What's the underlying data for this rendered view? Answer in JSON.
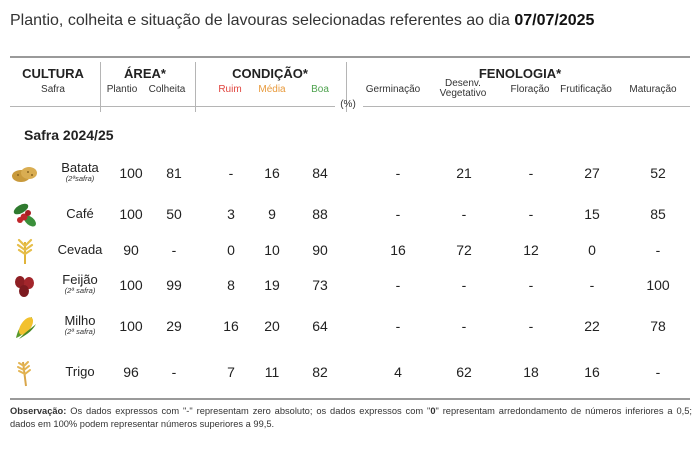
{
  "title": {
    "prefix": "Plantio, colheita e situação de lavouras selecionadas referentes ao dia",
    "date": "07/07/2025"
  },
  "header": {
    "cultura": "CULTURA",
    "safra": "Safra",
    "area": "ÁREA*",
    "plantio": "Plantio",
    "colheita": "Colheita",
    "condicao": "CONDIÇÃO*",
    "ruim": "Ruim",
    "media": "Média",
    "boa": "Boa",
    "fenologia": "FENOLOGIA*",
    "germinacao": "Germinação",
    "desenv_1": "Desenv.",
    "desenv_2": "Vegetativo",
    "floracao": "Floração",
    "frutificacao": "Frutificação",
    "maturacao": "Maturação",
    "unit": "(%)"
  },
  "section_label": "Safra 2024/25",
  "rows": [
    {
      "crop": "Batata",
      "season": "(2ªsafra)",
      "icon": "potato-icon",
      "plantio": "100",
      "colheita": "81",
      "ruim": "-",
      "media": "16",
      "boa": "84",
      "germinacao": "-",
      "desenvolvimento": "21",
      "floracao": "-",
      "frutificacao": "27",
      "maturacao": "52"
    },
    {
      "crop": "Café",
      "season": "",
      "icon": "coffee-icon",
      "plantio": "100",
      "colheita": "50",
      "ruim": "3",
      "media": "9",
      "boa": "88",
      "germinacao": "-",
      "desenvolvimento": "-",
      "floracao": "-",
      "frutificacao": "15",
      "maturacao": "85"
    },
    {
      "crop": "Cevada",
      "season": "",
      "icon": "barley-icon",
      "plantio": "90",
      "colheita": "-",
      "ruim": "0",
      "media": "10",
      "boa": "90",
      "germinacao": "16",
      "desenvolvimento": "72",
      "floracao": "12",
      "frutificacao": "0",
      "maturacao": "-"
    },
    {
      "crop": "Feijão",
      "season": "(2ª safra)",
      "icon": "bean-icon",
      "plantio": "100",
      "colheita": "99",
      "ruim": "8",
      "media": "19",
      "boa": "73",
      "germinacao": "-",
      "desenvolvimento": "-",
      "floracao": "-",
      "frutificacao": "-",
      "maturacao": "100"
    },
    {
      "crop": "Milho",
      "season": "(2ª safra)",
      "icon": "corn-icon",
      "plantio": "100",
      "colheita": "29",
      "ruim": "16",
      "media": "20",
      "boa": "64",
      "germinacao": "-",
      "desenvolvimento": "-",
      "floracao": "-",
      "frutificacao": "22",
      "maturacao": "78"
    },
    {
      "crop": "Trigo",
      "season": "",
      "icon": "wheat-icon",
      "plantio": "96",
      "colheita": "-",
      "ruim": "7",
      "media": "11",
      "boa": "82",
      "germinacao": "4",
      "desenvolvimento": "62",
      "floracao": "18",
      "frutificacao": "16",
      "maturacao": "-"
    }
  ],
  "note": {
    "label": "Observação:",
    "text_1": "Os dados expressos com \"-\" representam zero absoluto; os dados expressos com \"",
    "zero": "0",
    "text_2": "\" representam arredondamento de números inferiores a 0,5; dados em 100% podem representar números superiores a 99,5."
  }
}
